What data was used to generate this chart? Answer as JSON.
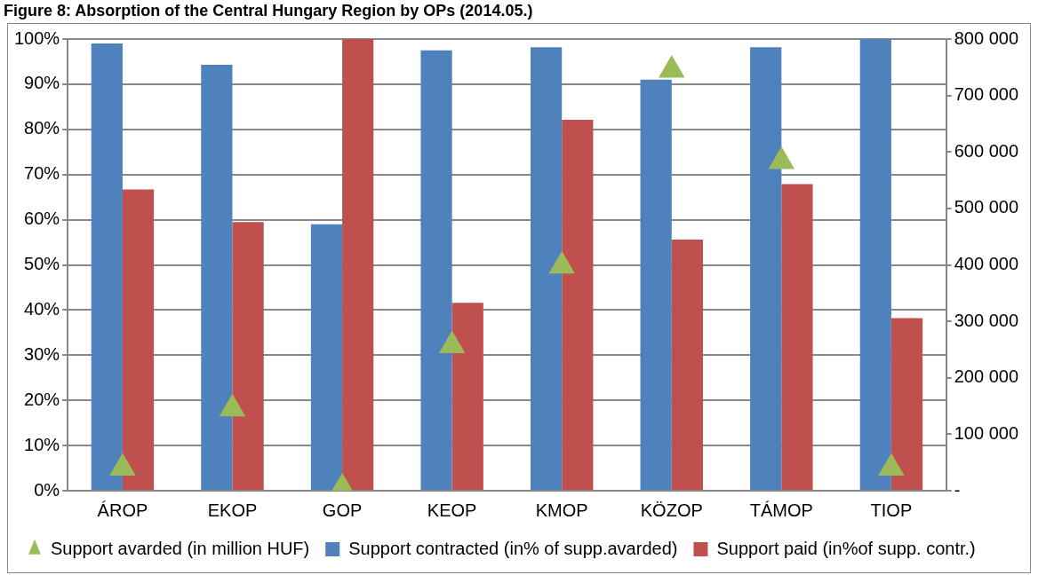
{
  "chart_data": {
    "type": "bar",
    "title": "Figure 8: Absorption of the Central Hungary Region by OPs (2014.05.)",
    "categories": [
      "ÁROP",
      "EKOP",
      "GOP",
      "KEOP",
      "KMOP",
      "KÖZOP",
      "TÁMOP",
      "TIOP"
    ],
    "series": [
      {
        "name": "Support contracted (in% of supp.avarded)",
        "color": "#4f81bd",
        "values": [
          99,
          94.3,
          59,
          97.5,
          98.2,
          91,
          98.2,
          100
        ]
      },
      {
        "name": "Support paid (in%of supp. contr.)",
        "color": "#c0504d",
        "values": [
          66.7,
          59.5,
          100,
          41.6,
          82.1,
          55.6,
          67.9,
          38.2
        ]
      },
      {
        "name": "Support avarded (in million HUF)",
        "color": "#9bbb59",
        "type": "scatter",
        "axis": "y2",
        "marker": "triangle",
        "values": [
          40000,
          145000,
          5000,
          257000,
          398000,
          745000,
          583000,
          40000
        ]
      }
    ],
    "ylim": [
      0,
      100
    ],
    "yticks": [
      {
        "value": 0,
        "label": "0%"
      },
      {
        "value": 10,
        "label": "10%"
      },
      {
        "value": 20,
        "label": "20%"
      },
      {
        "value": 30,
        "label": "30%"
      },
      {
        "value": 40,
        "label": "40%"
      },
      {
        "value": 50,
        "label": "50%"
      },
      {
        "value": 60,
        "label": "60%"
      },
      {
        "value": 70,
        "label": "70%"
      },
      {
        "value": 80,
        "label": "80%"
      },
      {
        "value": 90,
        "label": "90%"
      },
      {
        "value": 100,
        "label": "100%"
      }
    ],
    "y2lim": [
      0,
      800000
    ],
    "y2ticks": [
      {
        "value": 0,
        "label": "-"
      },
      {
        "value": 100000,
        "label": "100 000"
      },
      {
        "value": 200000,
        "label": "200 000"
      },
      {
        "value": 300000,
        "label": "300 000"
      },
      {
        "value": 400000,
        "label": "400 000"
      },
      {
        "value": 500000,
        "label": "500 000"
      },
      {
        "value": 600000,
        "label": "600 000"
      },
      {
        "value": 700000,
        "label": "700 000"
      },
      {
        "value": 800000,
        "label": "800 000"
      }
    ],
    "grid": "y",
    "legend": "bottom"
  }
}
